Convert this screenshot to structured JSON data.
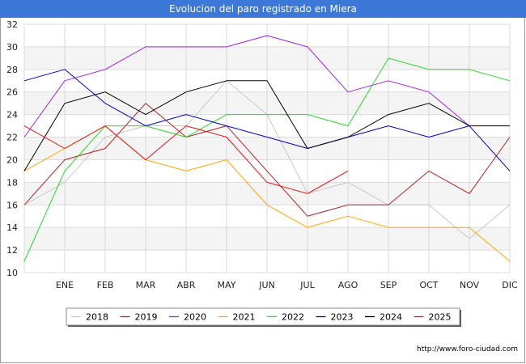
{
  "chart_data": {
    "type": "line",
    "title": "Evolucion del paro registrado en Miera",
    "categories": [
      "",
      "ENE",
      "FEB",
      "MAR",
      "ABR",
      "MAY",
      "JUN",
      "JUL",
      "AGO",
      "SEP",
      "OCT",
      "NOV",
      "DIC"
    ],
    "ylim": [
      10,
      32
    ],
    "yticks": [
      10,
      12,
      14,
      16,
      18,
      20,
      22,
      24,
      26,
      28,
      30,
      32
    ],
    "grid": true,
    "legend_position": "bottom",
    "series": [
      {
        "name": "2018",
        "color": "#c8c8c8",
        "values": [
          16,
          18,
          22,
          23,
          23,
          27,
          24,
          17,
          18,
          16,
          16,
          13,
          16
        ]
      },
      {
        "name": "2019",
        "color": "#b22222",
        "values": [
          16,
          20,
          21,
          25,
          22,
          23,
          19,
          15,
          16,
          16,
          19,
          17,
          22
        ]
      },
      {
        "name": "2020",
        "color": "#a020f0",
        "values": [
          22,
          27,
          28,
          30,
          30,
          30,
          31,
          30,
          26,
          27,
          26,
          23,
          null
        ]
      },
      {
        "name": "2021",
        "color": "#ffa500",
        "values": [
          19,
          21,
          23,
          20,
          19,
          20,
          16,
          14,
          15,
          14,
          14,
          14,
          11
        ]
      },
      {
        "name": "2022",
        "color": "#22dd22",
        "values": [
          11,
          19,
          23,
          23,
          22,
          24,
          24,
          24,
          23,
          29,
          28,
          28,
          27
        ]
      },
      {
        "name": "2023",
        "color": "#0000cc",
        "values": [
          27,
          28,
          25,
          23,
          24,
          23,
          22,
          21,
          22,
          23,
          22,
          23,
          19
        ]
      },
      {
        "name": "2024",
        "color": "#000000",
        "values": [
          19,
          25,
          26,
          24,
          26,
          27,
          27,
          21,
          22,
          24,
          25,
          23,
          23
        ]
      },
      {
        "name": "2025",
        "color": "#ee1111",
        "values": [
          23,
          21,
          23,
          20,
          23,
          22,
          18,
          17,
          19,
          null,
          null,
          null,
          null
        ]
      }
    ]
  },
  "footer": {
    "credit": "http://www.foro-ciudad.com"
  }
}
